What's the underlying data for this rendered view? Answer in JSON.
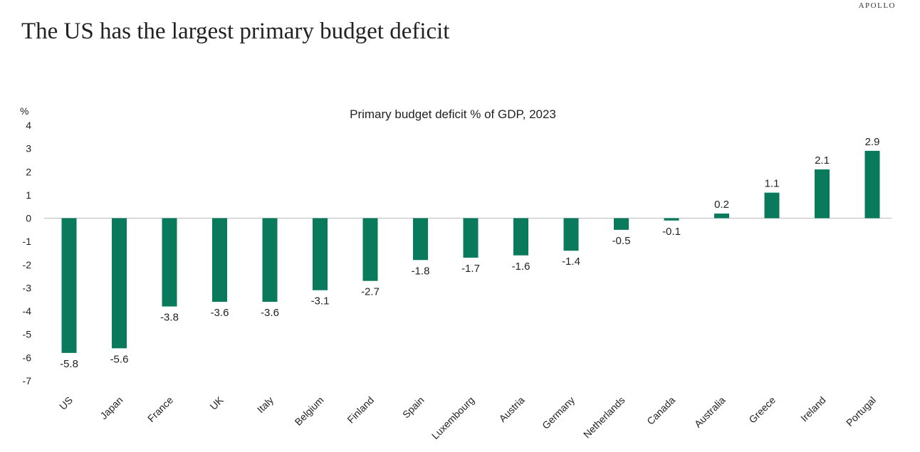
{
  "brand": "APOLLO",
  "headline": "The US has the largest primary budget deficit",
  "chart_data": {
    "type": "bar",
    "title": "Primary budget deficit % of GDP, 2023",
    "ylabel": "%",
    "xlabel": "",
    "ylim": [
      -7,
      4
    ],
    "yticks": [
      4,
      3,
      2,
      1,
      0,
      -1,
      -2,
      -3,
      -4,
      -5,
      -6,
      -7
    ],
    "grid": false,
    "bar_color": "#0a7a5c",
    "categories": [
      "US",
      "Japan",
      "France",
      "UK",
      "Italy",
      "Belgium",
      "Finland",
      "Spain",
      "Luxembourg",
      "Austria",
      "Germany",
      "Netherlands",
      "Canada",
      "Australia",
      "Greece",
      "Ireland",
      "Portugal"
    ],
    "values": [
      -5.8,
      -5.6,
      -3.8,
      -3.6,
      -3.6,
      -3.1,
      -2.7,
      -1.8,
      -1.7,
      -1.6,
      -1.4,
      -0.5,
      -0.1,
      0.2,
      1.1,
      2.1,
      2.9
    ],
    "labels": [
      "-5.8",
      "-5.6",
      "-3.8",
      "-3.6",
      "-3.6",
      "-3.1",
      "-2.7",
      "-1.8",
      "-1.7",
      "-1.6",
      "-1.4",
      "-0.5",
      "-0.1",
      "0.2",
      "1.1",
      "2.1",
      "2.9"
    ]
  }
}
